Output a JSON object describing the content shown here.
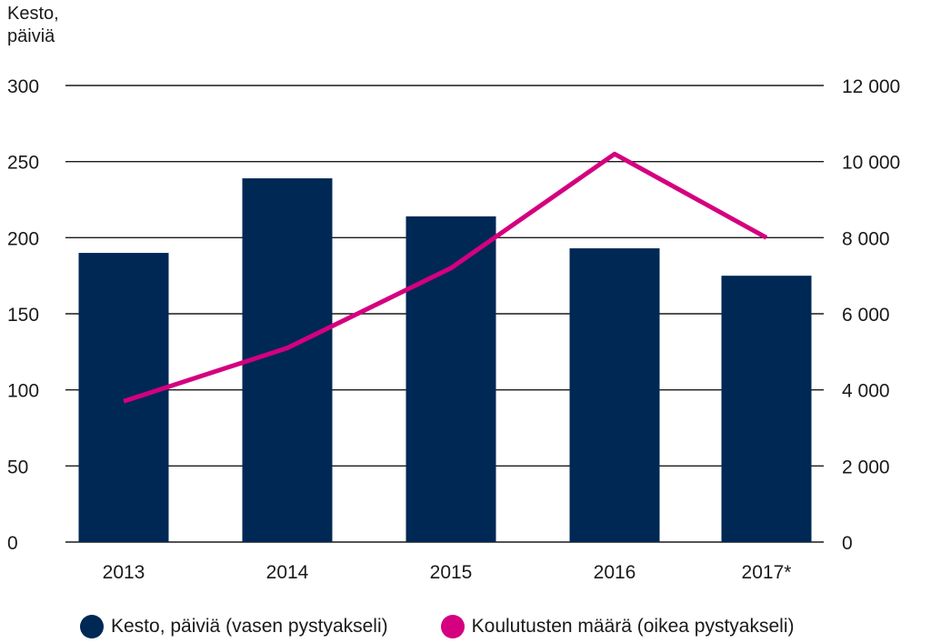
{
  "chart_data": {
    "type": "bar",
    "categories": [
      "2013",
      "2014",
      "2015",
      "2016",
      "2017*"
    ],
    "ylabel_lines": [
      "Kesto,",
      "päiviä"
    ],
    "y_left": {
      "lim": [
        0,
        300
      ],
      "ticks": [
        0,
        50,
        100,
        150,
        200,
        250,
        300
      ],
      "tick_labels": [
        "0",
        "50",
        "100",
        "150",
        "200",
        "250",
        "300"
      ]
    },
    "y_right": {
      "lim": [
        0,
        12000
      ],
      "ticks": [
        0,
        2000,
        4000,
        6000,
        8000,
        10000,
        12000
      ],
      "tick_labels": [
        "0",
        "2 000",
        "4 000",
        "6 000",
        "8 000",
        "10 000",
        "12 000"
      ]
    },
    "grid": true,
    "legend_position": "bottom",
    "series": [
      {
        "name": "Kesto, päiviä (vasen pystyakseli)",
        "kind": "bar",
        "axis": "left",
        "color": "#002855",
        "values": [
          190,
          239,
          214,
          193,
          175
        ]
      },
      {
        "name": "Koulutusten määrä (oikea pystyakseli)",
        "kind": "line",
        "axis": "right",
        "color": "#d4007f",
        "values": [
          3700,
          5100,
          7200,
          10200,
          8000
        ]
      }
    ]
  }
}
